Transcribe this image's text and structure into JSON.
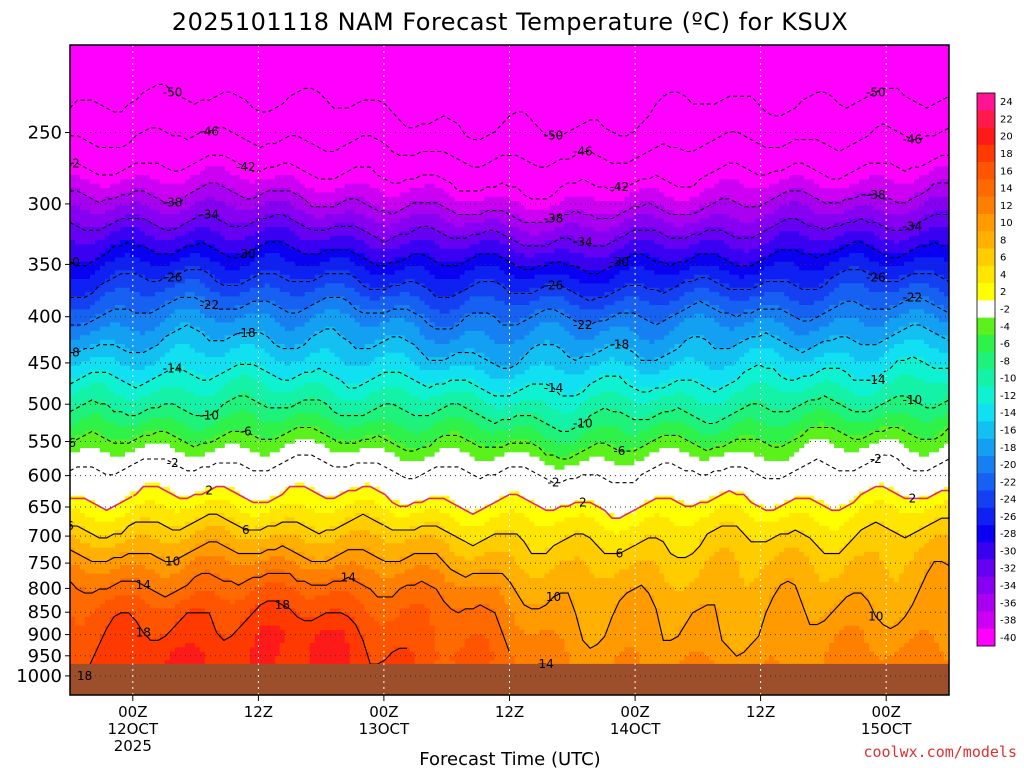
{
  "title": "2025101118 NAM Forecast Temperature (ºC) for KSUX",
  "credit": "coolwx.com/models",
  "chart_data": {
    "type": "heatmap",
    "title": "2025101118 NAM Forecast Temperature (ºC) for KSUX",
    "xlabel": "Forecast Time (UTC)",
    "ylabel": "",
    "y_scale": "log",
    "y_inverted": true,
    "ylim": [
      1050,
      200
    ],
    "xlim_hours_since_init": [
      0,
      84
    ],
    "grid": true,
    "y_ticks": [
      "250",
      "300",
      "350",
      "400",
      "450",
      "500",
      "550",
      "600",
      "650",
      "700",
      "750",
      "800",
      "850",
      "900",
      "950",
      "1000"
    ],
    "y_tick_values": [
      250,
      300,
      350,
      400,
      450,
      500,
      550,
      600,
      650,
      700,
      750,
      800,
      850,
      900,
      950,
      1000
    ],
    "x_ticks": [
      {
        "hour": 6,
        "lines": [
          "00Z",
          "12OCT",
          "2025"
        ]
      },
      {
        "hour": 18,
        "lines": [
          "12Z"
        ]
      },
      {
        "hour": 30,
        "lines": [
          "00Z",
          "13OCT"
        ]
      },
      {
        "hour": 42,
        "lines": [
          "12Z"
        ]
      },
      {
        "hour": 54,
        "lines": [
          "00Z",
          "14OCT"
        ]
      },
      {
        "hour": 66,
        "lines": [
          "12Z"
        ]
      },
      {
        "hour": 78,
        "lines": [
          "00Z",
          "15OCT"
        ]
      }
    ],
    "colorbar": {
      "labels": [
        "24",
        "22",
        "20",
        "18",
        "16",
        "14",
        "12",
        "10",
        "8",
        "6",
        "4",
        "2",
        "-2",
        "-4",
        "-6",
        "-8",
        "-10",
        "-12",
        "-14",
        "-16",
        "-18",
        "-20",
        "-22",
        "-24",
        "-26",
        "-28",
        "-30",
        "-32",
        "-34",
        "-36",
        "-38",
        "-40"
      ],
      "colors": [
        "#ff1493",
        "#ff1a4a",
        "#ff1a1a",
        "#ff3a00",
        "#ff5500",
        "#ff6a00",
        "#ff8000",
        "#ff9a00",
        "#ffb000",
        "#ffcc00",
        "#ffe600",
        "#ffff00",
        "#ffffff",
        "#5af21a",
        "#2ef24a",
        "#1ef27a",
        "#14f2a8",
        "#0ef2d2",
        "#10e0f2",
        "#12c0f2",
        "#14a0f2",
        "#1680f2",
        "#1660f2",
        "#1440f2",
        "#0f20f2",
        "#0a00f2",
        "#3a00f2",
        "#6600f2",
        "#8800f2",
        "#aa00f2",
        "#cc00f2",
        "#ff00ff"
      ]
    },
    "profile_times_hours": [
      0,
      12,
      24,
      36,
      48,
      60,
      72,
      84
    ],
    "profile_pressures_hpa": [
      200,
      250,
      300,
      350,
      400,
      450,
      500,
      550,
      600,
      650,
      700,
      750,
      800,
      850,
      900,
      950,
      1000
    ],
    "temperature_c": [
      [
        -56,
        -47,
        -37,
        -29,
        -22,
        -16,
        -11,
        -6,
        -1,
        3,
        7,
        11,
        14,
        16,
        17,
        18,
        19
      ],
      [
        -55,
        -46,
        -36,
        -27,
        -20,
        -15,
        -10,
        -5,
        0,
        4,
        8,
        12,
        15,
        18,
        19,
        20,
        20
      ],
      [
        -55,
        -47,
        -37,
        -28,
        -20,
        -15,
        -10,
        -5,
        0,
        4,
        8,
        12,
        16,
        18,
        20,
        20,
        20
      ],
      [
        -56,
        -49,
        -39,
        -29,
        -22,
        -17,
        -11,
        -6,
        -1,
        3,
        7,
        10,
        13,
        15,
        16,
        17,
        17
      ],
      [
        -57,
        -50,
        -40,
        -30,
        -22,
        -17,
        -12,
        -7,
        -2,
        2,
        5,
        7,
        9,
        10,
        11,
        12,
        12
      ],
      [
        -55,
        -47,
        -38,
        -29,
        -21,
        -16,
        -11,
        -6,
        -1,
        3,
        6,
        8,
        9,
        10,
        10,
        11,
        12
      ],
      [
        -55,
        -47,
        -37,
        -28,
        -21,
        -15,
        -10,
        -5,
        -1,
        3,
        6,
        8,
        9,
        10,
        11,
        12,
        12
      ],
      [
        -55,
        -46,
        -36,
        -27,
        -20,
        -14,
        -9,
        -4,
        0,
        4,
        7,
        9,
        10,
        11,
        12,
        13,
        14
      ]
    ],
    "contour_levels_labeled": [
      -50,
      -46,
      -42,
      -38,
      -34,
      -30,
      -26,
      -22,
      -18,
      -14,
      -10,
      -6,
      -2,
      2,
      6,
      10,
      14,
      18
    ],
    "ground_pressure_hpa": 970
  }
}
